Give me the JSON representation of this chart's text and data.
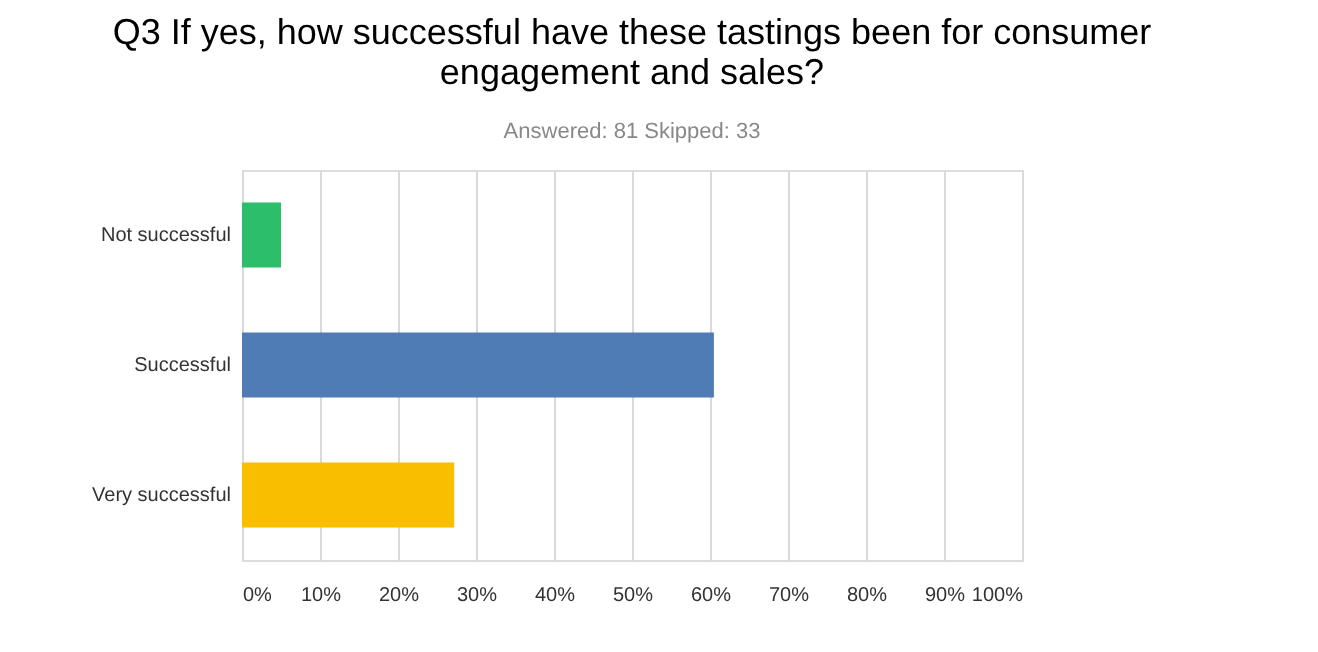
{
  "chart_data": {
    "type": "bar",
    "orientation": "horizontal",
    "title": "Q3 If yes, how successful have these tastings been for consumer engagement and sales?",
    "subtitle": "Answered: 81    Skipped: 33",
    "categories": [
      "Not successful",
      "Successful",
      "Very successful"
    ],
    "values": [
      5,
      60.5,
      27.2
    ],
    "colors": [
      "#2dbe6c",
      "#507cb6",
      "#f9be00"
    ],
    "xlim": [
      0,
      100
    ],
    "xticks": [
      {
        "value": 0,
        "label": "0%"
      },
      {
        "value": 10,
        "label": "10%"
      },
      {
        "value": 20,
        "label": "20%"
      },
      {
        "value": 30,
        "label": "30%"
      },
      {
        "value": 40,
        "label": "40%"
      },
      {
        "value": 50,
        "label": "50%"
      },
      {
        "value": 60,
        "label": "60%"
      },
      {
        "value": 70,
        "label": "70%"
      },
      {
        "value": 80,
        "label": "80%"
      },
      {
        "value": 90,
        "label": "90%"
      },
      {
        "value": 100,
        "label": "100%"
      }
    ],
    "grid": "x",
    "legend": false
  }
}
